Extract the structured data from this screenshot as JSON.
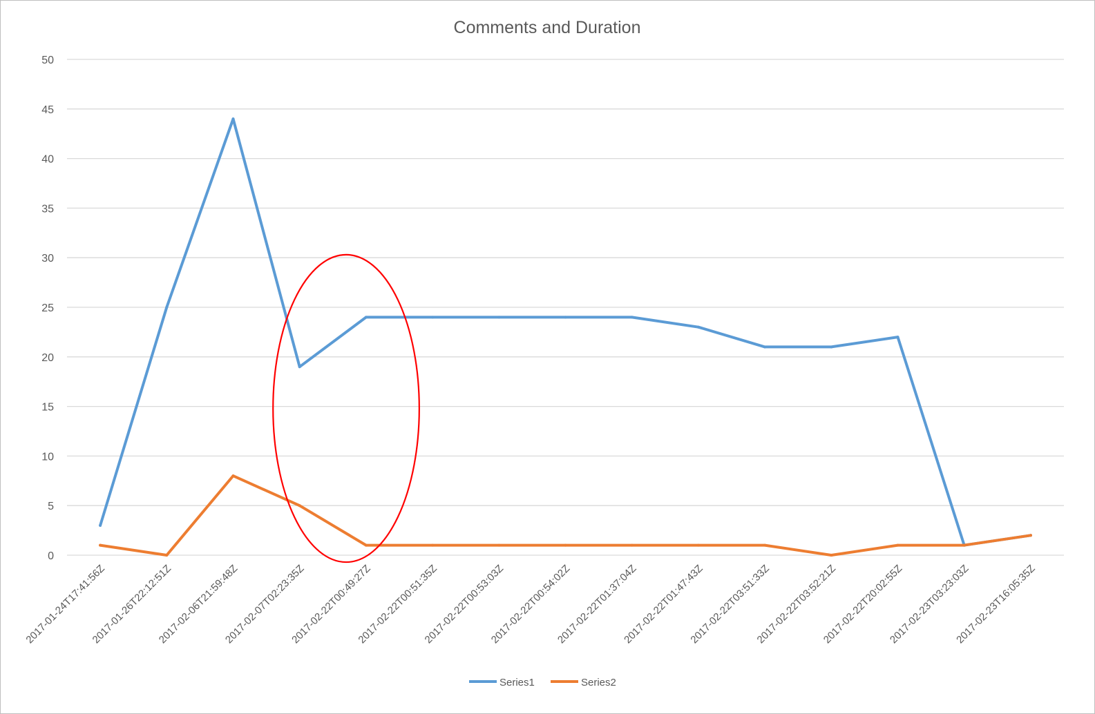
{
  "chart_data": {
    "type": "line",
    "title": "Comments and Duration",
    "xlabel": "",
    "ylabel": "",
    "ylim": [
      0,
      50
    ],
    "yticks": [
      0,
      5,
      10,
      15,
      20,
      25,
      30,
      35,
      40,
      45,
      50
    ],
    "grid": true,
    "legend_position": "bottom",
    "categories": [
      "2017-01-24T17:41:56Z",
      "2017-01-26T22:12:51Z",
      "2017-02-06T21:59:48Z",
      "2017-02-07T02:23:35Z",
      "2017-02-22T00:49:27Z",
      "2017-02-22T00:51:35Z",
      "2017-02-22T00:53:03Z",
      "2017-02-22T00:54:02Z",
      "2017-02-22T01:37:04Z",
      "2017-02-22T01:47:43Z",
      "2017-02-22T03:51:33Z",
      "2017-02-22T03:52:21Z",
      "2017-02-22T20:02:55Z",
      "2017-02-23T03:23:03Z",
      "2017-02-23T16:05:35Z"
    ],
    "series": [
      {
        "name": "Series1",
        "color": "#5b9bd5",
        "values": [
          3,
          25,
          44,
          19,
          24,
          24,
          24,
          24,
          24,
          23,
          21,
          21,
          22,
          1,
          2
        ]
      },
      {
        "name": "Series2",
        "color": "#ed7d31",
        "values": [
          1,
          0,
          8,
          5,
          1,
          1,
          1,
          1,
          1,
          1,
          1,
          0,
          1,
          1,
          2
        ]
      }
    ],
    "annotation": {
      "shape": "ellipse",
      "color": "#ff0000",
      "center_category_index": 3.7,
      "center_value": 14.8,
      "half_width_categories": 1.1,
      "half_height_value": 15.5
    }
  }
}
